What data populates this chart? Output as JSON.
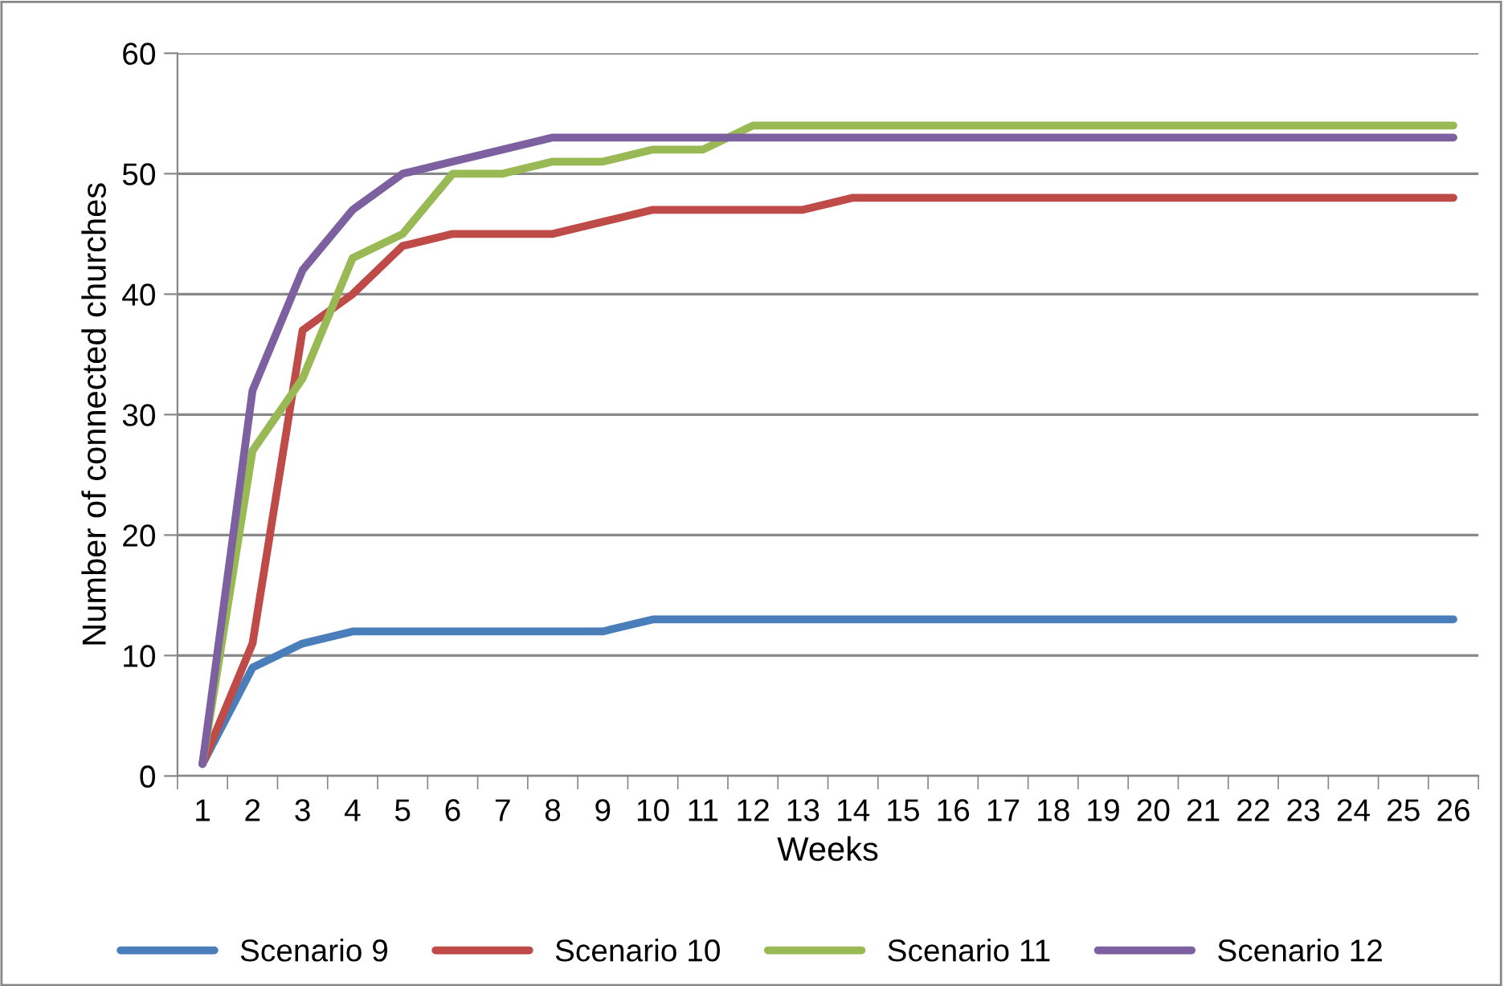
{
  "chart_data": {
    "type": "line",
    "xlabel": "Weeks",
    "ylabel": "Number of connected churches",
    "categories": [
      "1",
      "2",
      "3",
      "4",
      "5",
      "6",
      "7",
      "8",
      "9",
      "10",
      "11",
      "12",
      "13",
      "14",
      "15",
      "16",
      "17",
      "18",
      "19",
      "20",
      "21",
      "22",
      "23",
      "24",
      "25",
      "26"
    ],
    "series": [
      {
        "name": "Scenario 9",
        "color": "#4a7ebb",
        "values": [
          1,
          9,
          11,
          12,
          12,
          12,
          12,
          12,
          12,
          13,
          13,
          13,
          13,
          13,
          13,
          13,
          13,
          13,
          13,
          13,
          13,
          13,
          13,
          13,
          13,
          13
        ]
      },
      {
        "name": "Scenario 10",
        "color": "#be4b48",
        "values": [
          1,
          11,
          37,
          40,
          44,
          45,
          45,
          45,
          46,
          47,
          47,
          47,
          47,
          48,
          48,
          48,
          48,
          48,
          48,
          48,
          48,
          48,
          48,
          48,
          48,
          48
        ]
      },
      {
        "name": "Scenario 11",
        "color": "#98b954",
        "values": [
          1,
          27,
          33,
          43,
          45,
          50,
          50,
          51,
          51,
          52,
          52,
          54,
          54,
          54,
          54,
          54,
          54,
          54,
          54,
          54,
          54,
          54,
          54,
          54,
          54,
          54
        ]
      },
      {
        "name": "Scenario 12",
        "color": "#7d60a0",
        "values": [
          1,
          32,
          42,
          47,
          50,
          51,
          52,
          53,
          53,
          53,
          53,
          53,
          53,
          53,
          53,
          53,
          53,
          53,
          53,
          53,
          53,
          53,
          53,
          53,
          53,
          53
        ]
      }
    ],
    "ylim": [
      0,
      60
    ],
    "yticks": [
      0,
      10,
      20,
      30,
      40,
      50,
      60
    ],
    "grid": "y",
    "legend": "bottom",
    "marker": "none",
    "line_style": "solid"
  }
}
